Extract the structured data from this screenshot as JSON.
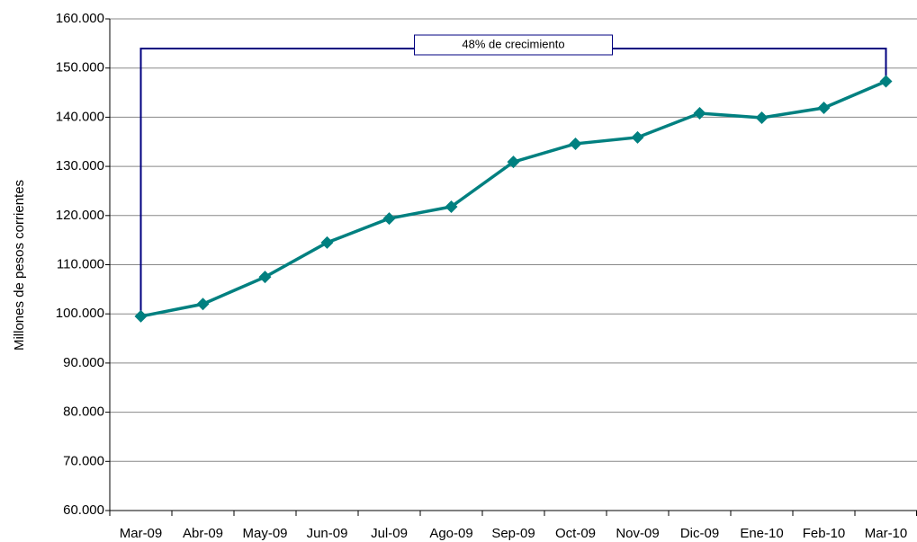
{
  "chart_data": {
    "type": "line",
    "y_label": "Millones de pesos corrientes",
    "annotation": "48% de crecimiento",
    "categories": [
      "Mar-09",
      "Abr-09",
      "May-09",
      "Jun-09",
      "Jul-09",
      "Ago-09",
      "Sep-09",
      "Oct-09",
      "Nov-09",
      "Dic-09",
      "Ene-10",
      "Feb-10",
      "Mar-10"
    ],
    "series": [
      {
        "name": "Millones de pesos corrientes",
        "color": "#008080",
        "values": [
          99500,
          102000,
          107500,
          114500,
          119400,
          121800,
          130900,
          134600,
          135900,
          140800,
          139900,
          141900,
          147300
        ]
      }
    ],
    "ylim": [
      60000,
      160000
    ],
    "yticks": [
      {
        "value": 60000,
        "label": "60.000"
      },
      {
        "value": 70000,
        "label": "70.000"
      },
      {
        "value": 80000,
        "label": "80.000"
      },
      {
        "value": 90000,
        "label": "90.000"
      },
      {
        "value": 100000,
        "label": "100.000"
      },
      {
        "value": 110000,
        "label": "110.000"
      },
      {
        "value": 120000,
        "label": "120.000"
      },
      {
        "value": 130000,
        "label": "130.000"
      },
      {
        "value": 140000,
        "label": "140.000"
      },
      {
        "value": 150000,
        "label": "150.000"
      },
      {
        "value": 160000,
        "label": "160.000"
      }
    ],
    "grid": true
  }
}
